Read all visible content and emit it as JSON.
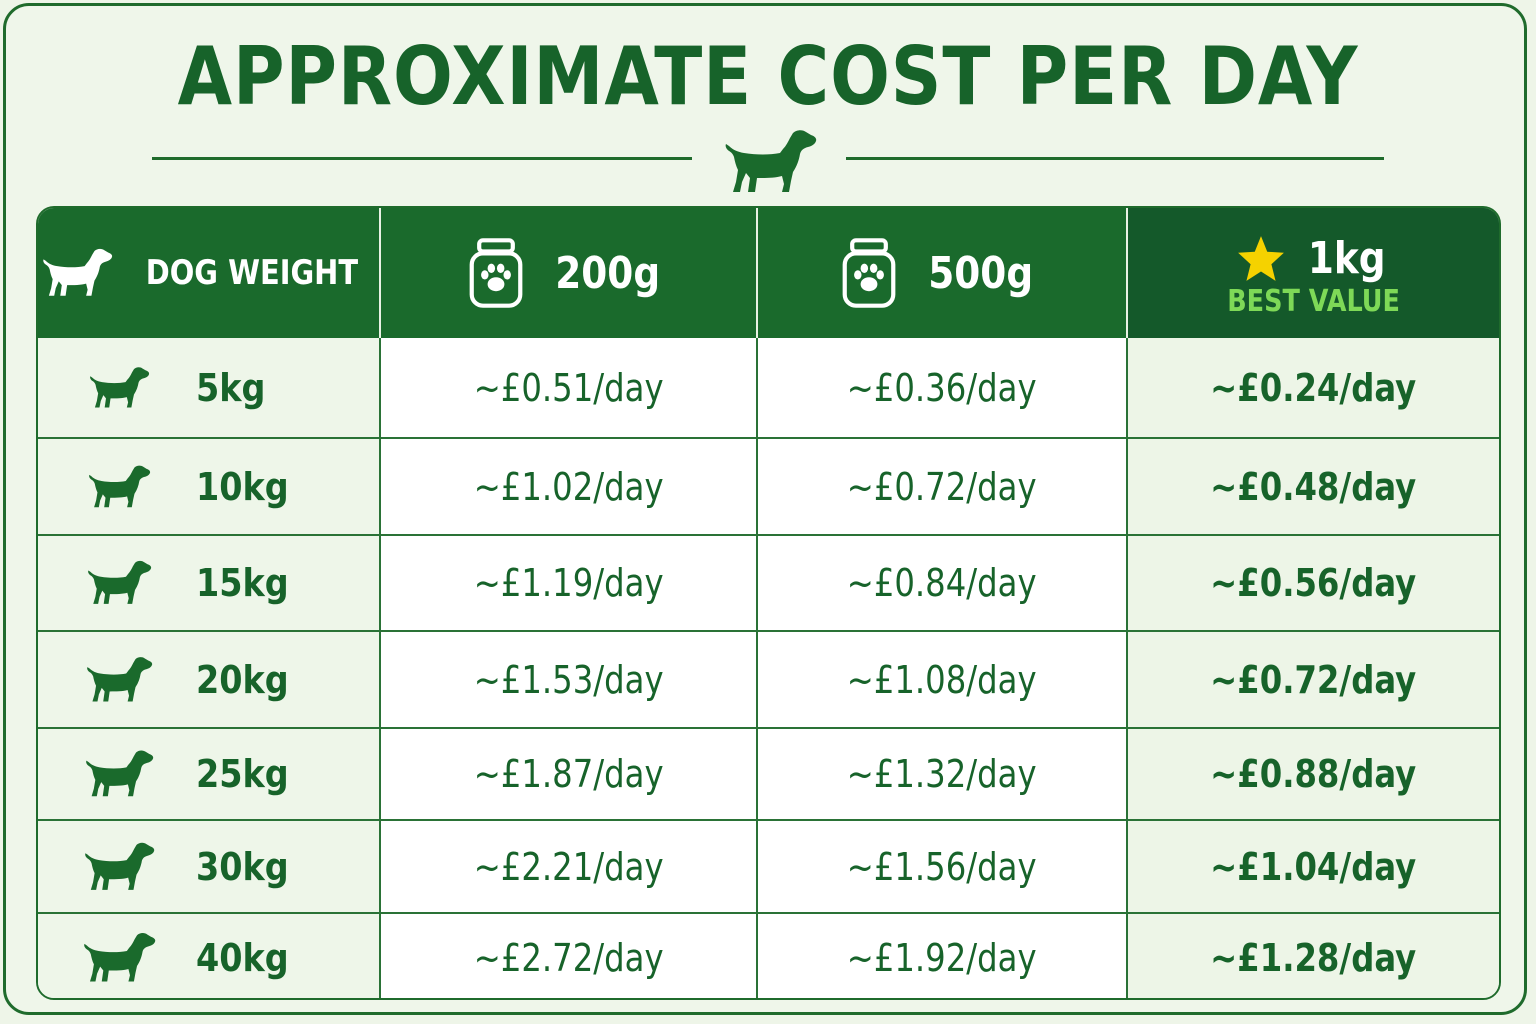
{
  "title": "APPROXIMATE COST PER DAY",
  "icons": {
    "title": "dog-icon",
    "weight_header": "dog-icon",
    "jar": "paw-jar-icon",
    "best": "star-icon"
  },
  "colors": {
    "primary": "#1a6a2c",
    "accent_star": "#f5d200",
    "best_value": "#7ed957"
  },
  "header": {
    "weight": "DOG WEIGHT",
    "size_200": "200g",
    "size_500": "500g",
    "size_1kg": "1kg",
    "best_value": "BEST VALUE"
  },
  "rows": [
    {
      "weight": "5kg",
      "c200": "~£0.51/day",
      "c500": "~£0.36/day",
      "c1kg": "~£0.24/day"
    },
    {
      "weight": "10kg",
      "c200": "~£1.02/day",
      "c500": "~£0.72/day",
      "c1kg": "~£0.48/day"
    },
    {
      "weight": "15kg",
      "c200": "~£1.19/day",
      "c500": "~£0.84/day",
      "c1kg": "~£0.56/day"
    },
    {
      "weight": "20kg",
      "c200": "~£1.53/day",
      "c500": "~£1.08/day",
      "c1kg": "~£0.72/day"
    },
    {
      "weight": "25kg",
      "c200": "~£1.87/day",
      "c500": "~£1.32/day",
      "c1kg": "~£0.88/day"
    },
    {
      "weight": "30kg",
      "c200": "~£2.21/day",
      "c500": "~£1.56/day",
      "c1kg": "~£1.04/day"
    },
    {
      "weight": "40kg",
      "c200": "~£2.72/day",
      "c500": "~£1.92/day",
      "c1kg": "~£1.28/day"
    }
  ]
}
